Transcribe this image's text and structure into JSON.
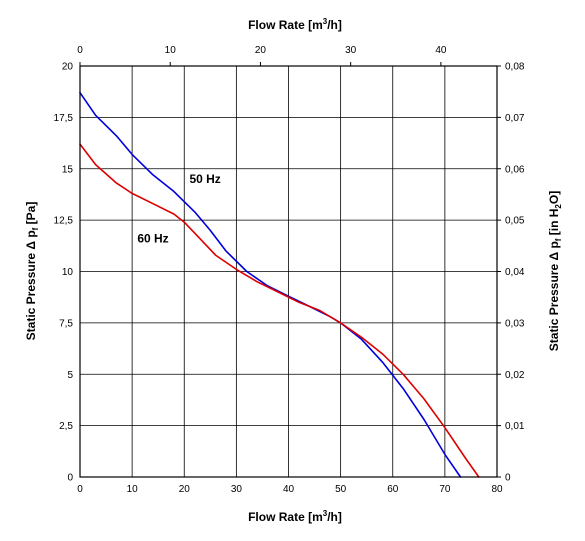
{
  "chart_data": {
    "type": "line",
    "x_bottom": {
      "label_text": "Flow Rate [m",
      "label_sup": "3",
      "label_tail": "/h]",
      "range": [
        0,
        80
      ],
      "ticks": [
        "0",
        "10",
        "20",
        "30",
        "40",
        "50",
        "60",
        "70",
        "80"
      ]
    },
    "x_top": {
      "label_text": "Flow Rate [m",
      "label_sup": "3",
      "label_tail": "/h]",
      "range": [
        0,
        46.22
      ],
      "ticks": [
        "0",
        "10",
        "20",
        "30",
        "40"
      ]
    },
    "y_left": {
      "label_text": "Static Pressure Δ p",
      "label_sub": "f",
      "label_tail": " [Pa]",
      "range": [
        0,
        20
      ],
      "ticks": [
        "0",
        "2,5",
        "5",
        "7,5",
        "10",
        "12,5",
        "15",
        "17,5",
        "20"
      ]
    },
    "y_right": {
      "label_text": "Static Pressure Δ p",
      "label_sub": "f",
      "label_mid": " [in H",
      "label_sub2": "2",
      "label_tail": "O]",
      "range": [
        0,
        0.08
      ],
      "ticks": [
        "0",
        "0,01",
        "0,02",
        "0,03",
        "0,04",
        "0,05",
        "0,06",
        "0,07",
        "0,08"
      ]
    },
    "grid": true,
    "series": [
      {
        "name": "50 Hz",
        "color": "#0000dd",
        "x": [
          0,
          3,
          7,
          10,
          14,
          18,
          22,
          25,
          28,
          32,
          36,
          40,
          44,
          48,
          50,
          54,
          58,
          62,
          66,
          70,
          73
        ],
        "y": [
          18.7,
          17.6,
          16.6,
          15.7,
          14.7,
          13.9,
          12.9,
          12.0,
          11.0,
          10.0,
          9.3,
          8.8,
          8.3,
          7.8,
          7.5,
          6.7,
          5.6,
          4.3,
          2.8,
          1.1,
          0
        ]
      },
      {
        "name": "60 Hz",
        "color": "#dd0000",
        "x": [
          0,
          3,
          7,
          10,
          14,
          18,
          20,
          23,
          26,
          30,
          34,
          38,
          42,
          46,
          50,
          54,
          58,
          62,
          66,
          70,
          74,
          76.5
        ],
        "y": [
          16.2,
          15.2,
          14.3,
          13.8,
          13.3,
          12.8,
          12.4,
          11.6,
          10.8,
          10.1,
          9.5,
          9.0,
          8.5,
          8.1,
          7.5,
          6.8,
          6.0,
          5.0,
          3.8,
          2.4,
          0.9,
          0
        ]
      }
    ],
    "annotations": [
      {
        "text": "50 Hz",
        "x": 21,
        "y": 14.3
      },
      {
        "text": "60 Hz",
        "x": 11,
        "y": 11.4
      }
    ]
  }
}
